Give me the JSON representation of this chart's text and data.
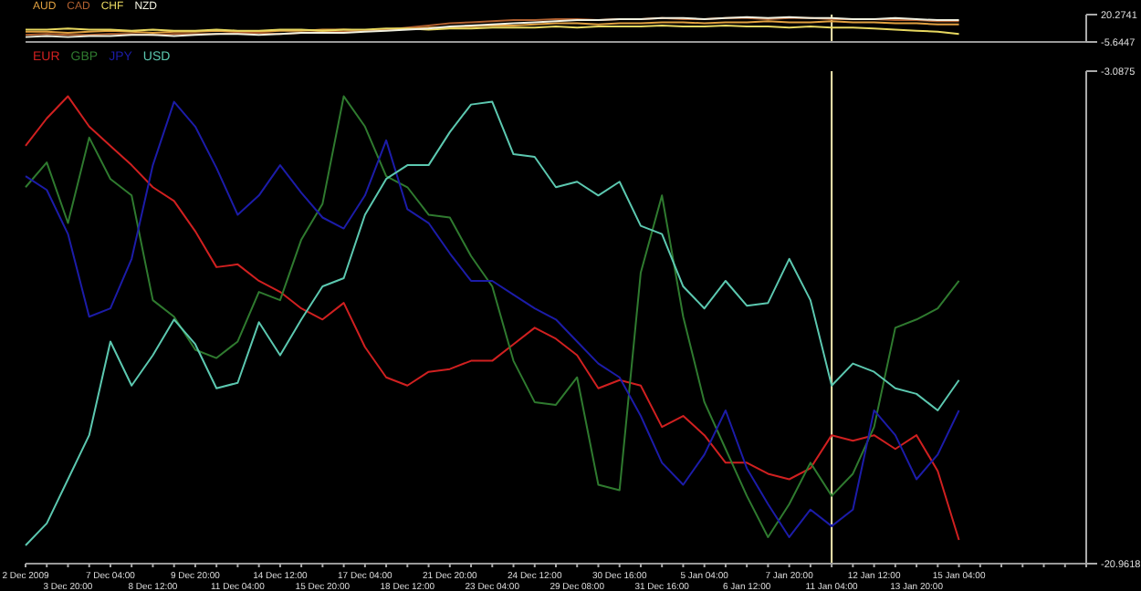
{
  "chart_data": [
    {
      "type": "line",
      "categories": [
        "2 Dec 2009",
        null,
        "3 Dec 20:00",
        null,
        "7 Dec 04:00",
        null,
        "8 Dec 12:00",
        null,
        "9 Dec 20:00",
        null,
        "11 Dec 04:00",
        null,
        "14 Dec 12:00",
        null,
        "15 Dec 20:00",
        null,
        "17 Dec 04:00",
        null,
        "18 Dec 12:00",
        null,
        "21 Dec 20:00",
        null,
        "23 Dec 04:00",
        null,
        "24 Dec 12:00",
        null,
        "29 Dec 08:00",
        null,
        "30 Dec 16:00",
        null,
        "31 Dec 16:00",
        null,
        "5 Jan 04:00",
        null,
        "6 Jan 12:00",
        null,
        "7 Jan 20:00",
        null,
        "11 Jan 04:00",
        null,
        "12 Jan 12:00",
        null,
        "13 Jan 20:00",
        null,
        "15 Jan 04:00",
        null,
        null,
        null,
        null,
        null,
        null
      ],
      "series": [
        {
          "name": "AUD",
          "color": "#e0a040",
          "values": [
            4,
            4,
            3,
            4,
            5,
            4,
            3,
            4,
            4,
            5,
            4,
            4,
            5,
            5,
            6,
            6,
            5,
            6,
            7,
            8,
            8,
            9,
            10,
            10,
            11,
            12,
            12,
            11,
            12,
            12,
            13,
            13,
            12,
            13,
            13,
            14,
            13,
            13,
            14,
            13,
            13,
            12,
            12,
            11,
            11,
            null,
            null,
            null,
            null,
            null,
            null
          ]
        },
        {
          "name": "CAD",
          "color": "#b06030",
          "values": [
            1,
            2,
            1,
            1,
            2,
            2,
            1,
            2,
            2,
            2,
            3,
            3,
            2,
            3,
            4,
            4,
            5,
            6,
            8,
            10,
            12,
            13,
            14,
            15,
            15,
            16,
            16,
            15,
            16,
            16,
            17,
            16,
            16,
            17,
            17,
            16,
            17,
            17,
            16,
            16,
            16,
            15,
            15,
            14,
            14,
            null,
            null,
            null,
            null,
            null,
            null
          ]
        },
        {
          "name": "CHF",
          "color": "#e8d860",
          "values": [
            6,
            6,
            7,
            6,
            6,
            5,
            6,
            5,
            5,
            6,
            5,
            5,
            6,
            6,
            5,
            6,
            6,
            7,
            7,
            6,
            7,
            7,
            8,
            8,
            8,
            9,
            8,
            9,
            9,
            9,
            10,
            9,
            9,
            10,
            9,
            9,
            8,
            9,
            8,
            8,
            7,
            6,
            5,
            4,
            2,
            null,
            null,
            null,
            null,
            null,
            null
          ]
        },
        {
          "name": "NZD",
          "color": "#f0f0e0",
          "values": [
            -1,
            0,
            -1,
            0,
            0,
            1,
            1,
            0,
            1,
            2,
            2,
            1,
            2,
            3,
            3,
            3,
            4,
            5,
            6,
            7,
            9,
            10,
            11,
            12,
            13,
            14,
            15,
            15,
            16,
            16,
            17,
            17,
            16,
            17,
            18,
            17,
            18,
            17,
            17,
            16,
            16,
            17,
            16,
            15,
            15,
            null,
            null,
            null,
            null,
            null,
            null
          ]
        }
      ],
      "ylim": [
        -5.6447,
        20.2741
      ],
      "yticks": [
        -5.6447,
        20.2741
      ],
      "tick_labels": "y",
      "legend": "top left",
      "grid": false,
      "marker": "none",
      "line_style": "solid",
      "ref_lines": [
        {
          "axis": "x",
          "value": "11 Jan 04:00",
          "color": "#f0e8b0"
        }
      ]
    },
    {
      "type": "line",
      "categories": [
        "2 Dec 2009",
        null,
        "3 Dec 20:00",
        null,
        "7 Dec 04:00",
        null,
        "8 Dec 12:00",
        null,
        "9 Dec 20:00",
        null,
        "11 Dec 04:00",
        null,
        "14 Dec 12:00",
        null,
        "15 Dec 20:00",
        null,
        "17 Dec 04:00",
        null,
        "18 Dec 12:00",
        null,
        "21 Dec 20:00",
        null,
        "23 Dec 04:00",
        null,
        "24 Dec 12:00",
        null,
        "29 Dec 08:00",
        null,
        "30 Dec 16:00",
        null,
        "31 Dec 16:00",
        null,
        "5 Jan 04:00",
        null,
        "6 Jan 12:00",
        null,
        "7 Jan 20:00",
        null,
        "11 Jan 04:00",
        null,
        "12 Jan 12:00",
        null,
        "13 Jan 20:00",
        null,
        "15 Jan 04:00",
        null,
        null,
        null,
        null,
        null,
        null
      ],
      "series": [
        {
          "name": "EUR",
          "color": "#d02020",
          "values": [
            -5.8,
            -4.8,
            -4.0,
            -5.1,
            -5.8,
            -6.5,
            -7.3,
            -7.8,
            -8.9,
            -10.2,
            -10.1,
            -10.7,
            -11.1,
            -11.7,
            -12.1,
            -11.5,
            -13.1,
            -14.2,
            -14.5,
            -14.0,
            -13.9,
            -13.6,
            -13.6,
            -13.0,
            -12.4,
            -12.8,
            -13.4,
            -14.6,
            -14.3,
            -14.5,
            -16.0,
            -15.6,
            -16.3,
            -17.3,
            -17.3,
            -17.7,
            -17.9,
            -17.5,
            -16.3,
            -16.5,
            -16.3,
            -16.8,
            -16.3,
            -17.6,
            -20.1,
            null,
            null,
            null,
            null,
            null,
            null
          ]
        },
        {
          "name": "GBP",
          "color": "#2f7a2f",
          "values": [
            -7.3,
            -6.4,
            -8.6,
            -5.5,
            -7.0,
            -7.6,
            -11.4,
            -12.0,
            -13.2,
            -13.5,
            -12.9,
            -11.1,
            -11.4,
            -9.2,
            -7.9,
            -4.0,
            -5.1,
            -6.9,
            -7.3,
            -8.3,
            -8.4,
            -9.8,
            -10.9,
            -13.6,
            -15.1,
            -15.2,
            -14.2,
            -18.1,
            -18.3,
            -10.4,
            -7.6,
            -12.0,
            -15.1,
            -16.8,
            -18.5,
            -20.0,
            -18.8,
            -17.3,
            -18.5,
            -17.7,
            -16.0,
            -12.4,
            -12.1,
            -11.7,
            -10.7,
            null,
            null,
            null,
            null,
            null,
            null
          ]
        },
        {
          "name": "JPY",
          "color": "#1c1ca8",
          "values": [
            -6.9,
            -7.4,
            -9.0,
            -12.0,
            -11.7,
            -9.9,
            -6.5,
            -4.2,
            -5.1,
            -6.6,
            -8.3,
            -7.6,
            -6.5,
            -7.5,
            -8.4,
            -8.8,
            -7.6,
            -5.6,
            -8.1,
            -8.6,
            -9.7,
            -10.7,
            -10.7,
            -11.2,
            -11.7,
            -12.1,
            -12.9,
            -13.7,
            -14.2,
            -15.6,
            -17.3,
            -18.1,
            -17.0,
            -15.4,
            -17.5,
            -18.8,
            -20.0,
            -19.0,
            -19.6,
            -19.0,
            -15.4,
            -16.3,
            -17.9,
            -17.0,
            -15.4,
            null,
            null,
            null,
            null,
            null,
            null
          ]
        },
        {
          "name": "USD",
          "color": "#5cc8b0",
          "values": [
            -20.3,
            -19.5,
            -17.9,
            -16.3,
            -12.9,
            -14.5,
            -13.4,
            -12.1,
            -13.0,
            -14.6,
            -14.4,
            -12.2,
            -13.4,
            -12.1,
            -10.9,
            -10.6,
            -8.3,
            -7.0,
            -6.5,
            -6.5,
            -5.3,
            -4.3,
            -4.2,
            -6.1,
            -6.2,
            -7.3,
            -7.1,
            -7.6,
            -7.1,
            -8.7,
            -9.0,
            -10.9,
            -11.7,
            -10.7,
            -11.6,
            -11.5,
            -9.9,
            -11.4,
            -14.5,
            -13.7,
            -14.0,
            -14.6,
            -14.8,
            -15.4,
            -14.3,
            null,
            null,
            null,
            null,
            null,
            null
          ]
        }
      ],
      "ylim": [
        -20.9618,
        -3.0875
      ],
      "yticks": [
        -20.9618,
        -3.0875
      ],
      "legend": "top left",
      "grid": false,
      "marker": "none",
      "line_style": "solid",
      "ref_lines": [
        {
          "axis": "x",
          "value": "11 Jan 04:00",
          "color": "#f0e8b0"
        }
      ]
    }
  ]
}
